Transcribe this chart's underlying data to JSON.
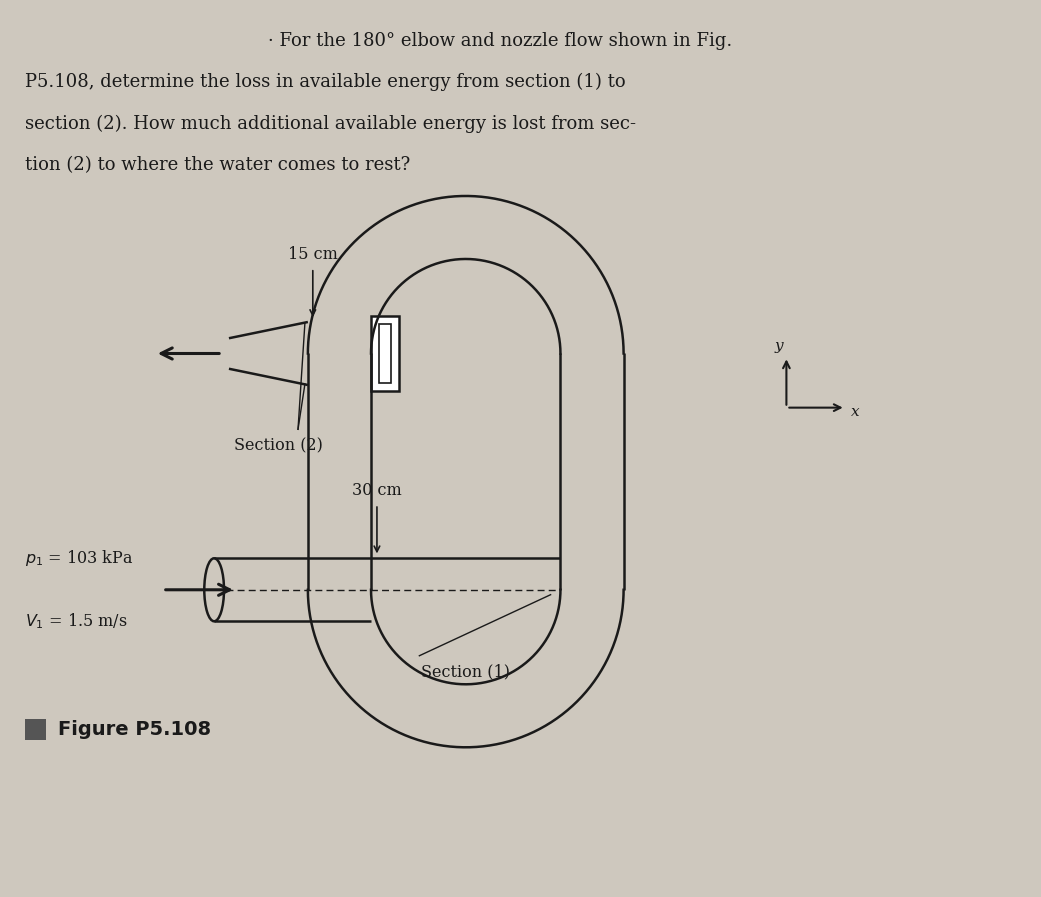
{
  "title_line1": "· For the 180° elbow and nozzle flow shown in Fig.",
  "title_line2": "P5.108, determine the loss in available energy from section (1) to",
  "title_line3": "section (2). How much additional available energy is lost from sec-",
  "title_line4": "tion (2) to where the water comes to rest?",
  "label_15cm": "15 cm",
  "label_30cm": "30 cm",
  "label_section2": "Section (2)",
  "label_section1": "Section (1)",
  "label_p1": "$p_1$ = 103 kPa",
  "label_v1": "$V_1$ = 1.5 m/s",
  "label_figure": "■ Figure P5.108",
  "label_y": "y",
  "label_x": "x",
  "bg_color": "#cec8be",
  "line_color": "#1a1a1a",
  "text_color": "#1a1a1a",
  "fig_width": 10.41,
  "fig_height": 8.97
}
